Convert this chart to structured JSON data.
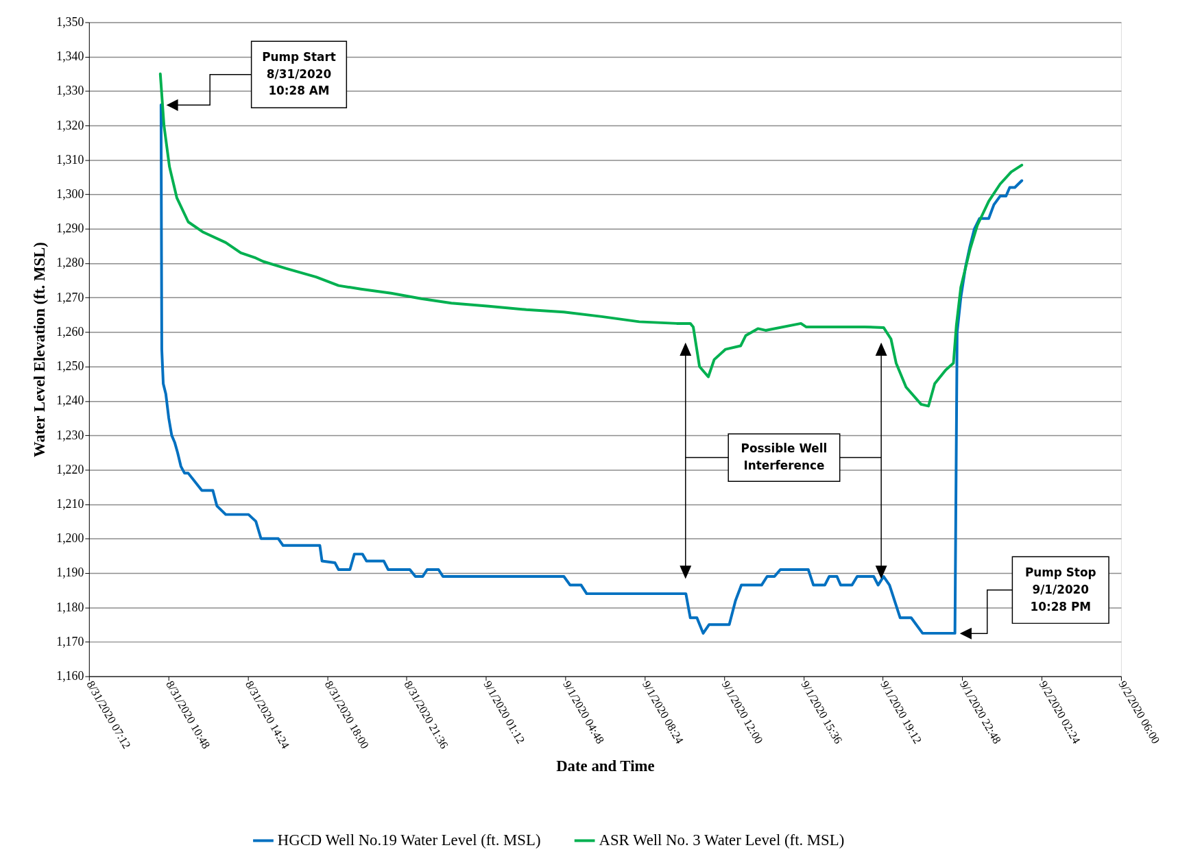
{
  "chart_data": {
    "type": "line",
    "xlabel": "Date and Time",
    "ylabel": "Water Level Elevation (ft. MSL)",
    "x": [
      "2020-08-31T10:28",
      "2020-08-31T10:30",
      "2020-08-31T10:34",
      "2020-08-31T10:41",
      "2020-08-31T10:49",
      "2020-08-31T10:57",
      "2020-08-31T11:05",
      "2020-08-31T11:13",
      "2020-08-31T11:22",
      "2020-08-31T11:32",
      "2020-08-31T11:42",
      "2020-08-31T12:19",
      "2020-08-31T12:49",
      "2020-08-31T13:00",
      "2020-08-31T13:24",
      "2020-08-31T14:26",
      "2020-08-31T14:46",
      "2020-08-31T15:00",
      "2020-08-31T15:47",
      "2020-08-31T16:00",
      "2020-08-31T17:40",
      "2020-08-31T17:46",
      "2020-08-31T18:21",
      "2020-08-31T18:31",
      "2020-08-31T19:02",
      "2020-08-31T19:14",
      "2020-08-31T19:36",
      "2020-08-31T19:47",
      "2020-08-31T20:34",
      "2020-08-31T20:46",
      "2020-08-31T21:45",
      "2020-08-31T22:00",
      "2020-08-31T22:20",
      "2020-08-31T22:32",
      "2020-08-31T23:03",
      "2020-08-31T23:15",
      "2020-09-01T04:44",
      "2020-09-01T05:01",
      "2020-09-01T05:31",
      "2020-09-01T05:46",
      "2020-09-01T10:16",
      "2020-09-01T10:28",
      "2020-09-01T10:46",
      "2020-09-01T11:03",
      "2020-09-01T11:19",
      "2020-09-01T12:14",
      "2020-09-01T12:31",
      "2020-09-01T12:47",
      "2020-09-01T13:42",
      "2020-09-01T13:57",
      "2020-09-01T14:17",
      "2020-09-01T14:33",
      "2020-09-01T15:49",
      "2020-09-01T16:03",
      "2020-09-01T16:34",
      "2020-09-01T16:46",
      "2020-09-01T17:07",
      "2020-09-01T17:17",
      "2020-09-01T17:48",
      "2020-09-01T18:02",
      "2020-09-01T18:47",
      "2020-09-01T18:59",
      "2020-09-01T19:14",
      "2020-09-01T19:30",
      "2020-09-01T19:59",
      "2020-09-01T20:29",
      "2020-09-01T21:00",
      "2020-09-01T22:28",
      "2020-09-01T22:34",
      "2020-09-01T22:44",
      "2020-09-01T22:57",
      "2020-09-01T23:09",
      "2020-09-01T23:21",
      "2020-09-01T23:35",
      "2020-09-02T00:00",
      "2020-09-02T00:14",
      "2020-09-02T00:31",
      "2020-09-02T00:47",
      "2020-09-02T00:57",
      "2020-09-02T01:11",
      "2020-09-02T01:30"
    ],
    "series": [
      {
        "name": "HGCD Well No.19 Water Level (ft. MSL)",
        "color": "#0070c0",
        "values": [
          1326,
          1255,
          1245,
          1242,
          1235,
          1230,
          1228,
          1225,
          1221,
          1219,
          1219,
          1214,
          1214,
          1209.5,
          1207,
          1207,
          1205,
          1200,
          1200,
          1198,
          1198,
          1193.5,
          1193,
          1191,
          1191,
          1195.5,
          1195.5,
          1193.5,
          1193.5,
          1191,
          1191,
          1189,
          1189,
          1191,
          1191,
          1189,
          1189,
          1186.5,
          1186.5,
          1184,
          1184,
          1177,
          1177,
          1172.5,
          1175,
          1175,
          1182,
          1186.5,
          1186.5,
          1189,
          1189,
          1191,
          1191,
          1186.5,
          1186.5,
          1189,
          1189,
          1186.5,
          1186.5,
          1189,
          1189,
          1186.5,
          1189,
          1186.5,
          1177,
          1177,
          1172.5,
          1172.5,
          1260,
          1270,
          1279,
          1285,
          1290,
          1293,
          1293,
          1297,
          1299.5,
          1299.5,
          1302,
          1302,
          1304
        ]
      },
      {
        "name": "ASR Well No. 3 Water Level (ft. MSL)",
        "color": "#00b050",
        "x": [
          "2020-08-31T10:26",
          "2020-08-31T10:36",
          "2020-08-31T10:51",
          "2020-08-31T11:11",
          "2020-08-31T11:42",
          "2020-08-31T12:23",
          "2020-08-31T13:24",
          "2020-08-31T14:05",
          "2020-08-31T14:46",
          "2020-08-31T15:06",
          "2020-08-31T16:08",
          "2020-08-31T17:30",
          "2020-08-31T18:31",
          "2020-08-31T19:32",
          "2020-08-31T20:54",
          "2020-08-31T22:16",
          "2020-08-31T23:38",
          "2020-09-01T01:20",
          "2020-09-01T03:02",
          "2020-09-01T04:44",
          "2020-09-01T06:27",
          "2020-09-01T08:09",
          "2020-09-01T09:51",
          "2020-09-01T10:28",
          "2020-09-01T10:36",
          "2020-09-01T10:53",
          "2020-09-01T11:17",
          "2020-09-01T11:33",
          "2020-09-01T12:04",
          "2020-09-01T12:45",
          "2020-09-01T12:59",
          "2020-09-01T13:32",
          "2020-09-01T13:53",
          "2020-09-01T15:29",
          "2020-09-01T15:43",
          "2020-09-01T18:22",
          "2020-09-01T19:14",
          "2020-09-01T19:34",
          "2020-09-01T19:48",
          "2020-09-01T20:15",
          "2020-09-01T20:56",
          "2020-09-01T21:16",
          "2020-09-01T21:33",
          "2020-09-01T22:03",
          "2020-09-01T22:24",
          "2020-09-01T22:32",
          "2020-09-01T22:44",
          "2020-09-01T23:09",
          "2020-09-01T23:29",
          "2020-09-02T00:00",
          "2020-09-02T00:31",
          "2020-09-02T01:01",
          "2020-09-02T01:30"
        ],
        "values": [
          1335,
          1320,
          1308,
          1299,
          1292,
          1289,
          1286,
          1283,
          1281.5,
          1280.5,
          1278.5,
          1276,
          1273.5,
          1272.5,
          1271.3,
          1269.7,
          1268.4,
          1267.5,
          1266.5,
          1265.8,
          1264.5,
          1263,
          1262.5,
          1262.5,
          1261.5,
          1250,
          1247,
          1252,
          1255,
          1256,
          1259,
          1261,
          1260.5,
          1262.5,
          1261.5,
          1261.5,
          1261.3,
          1258,
          1251,
          1244,
          1239,
          1238.5,
          1245,
          1249,
          1251,
          1262,
          1273,
          1284,
          1291,
          1298,
          1303,
          1306.5,
          1308.5
        ]
      }
    ],
    "xlim": [
      "2020-08-31T07:12",
      "2020-09-02T06:00"
    ],
    "xticks": [
      {
        "value": "2020-08-31T07:12",
        "label": "8/31/2020 07:12"
      },
      {
        "value": "2020-08-31T10:48",
        "label": "8/31/2020 10:48"
      },
      {
        "value": "2020-08-31T14:24",
        "label": "8/31/2020 14:24"
      },
      {
        "value": "2020-08-31T18:00",
        "label": "8/31/2020 18:00"
      },
      {
        "value": "2020-08-31T21:36",
        "label": "8/31/2020 21:36"
      },
      {
        "value": "2020-09-01T01:12",
        "label": "9/1/2020 01:12"
      },
      {
        "value": "2020-09-01T04:48",
        "label": "9/1/2020 04:48"
      },
      {
        "value": "2020-09-01T08:24",
        "label": "9/1/2020 08:24"
      },
      {
        "value": "2020-09-01T12:00",
        "label": "9/1/2020 12:00"
      },
      {
        "value": "2020-09-01T15:36",
        "label": "9/1/2020 15:36"
      },
      {
        "value": "2020-09-01T19:12",
        "label": "9/1/2020 19:12"
      },
      {
        "value": "2020-09-01T22:48",
        "label": "9/1/2020 22:48"
      },
      {
        "value": "2020-09-02T02:24",
        "label": "9/2/2020 02:24"
      },
      {
        "value": "2020-09-02T06:00",
        "label": "9/2/2020 06:00"
      }
    ],
    "ylim": [
      1160,
      1350
    ],
    "yticks": [
      {
        "value": 1160,
        "label": "1,160"
      },
      {
        "value": 1170,
        "label": "1,170"
      },
      {
        "value": 1180,
        "label": "1,180"
      },
      {
        "value": 1190,
        "label": "1,190"
      },
      {
        "value": 1200,
        "label": "1,200"
      },
      {
        "value": 1210,
        "label": "1,210"
      },
      {
        "value": 1220,
        "label": "1,220"
      },
      {
        "value": 1230,
        "label": "1,230"
      },
      {
        "value": 1240,
        "label": "1,240"
      },
      {
        "value": 1250,
        "label": "1,250"
      },
      {
        "value": 1260,
        "label": "1,260"
      },
      {
        "value": 1270,
        "label": "1,270"
      },
      {
        "value": 1280,
        "label": "1,280"
      },
      {
        "value": 1290,
        "label": "1,290"
      },
      {
        "value": 1300,
        "label": "1,300"
      },
      {
        "value": 1310,
        "label": "1,310"
      },
      {
        "value": 1320,
        "label": "1,320"
      },
      {
        "value": 1330,
        "label": "1,330"
      },
      {
        "value": 1340,
        "label": "1,340"
      },
      {
        "value": 1350,
        "label": "1,350"
      }
    ],
    "grid": "y",
    "legend": "bottom",
    "marker": "none",
    "line_style": "solid",
    "annotations": [
      "Pump Start\n8/31/2020\n10:28 AM",
      "Possible Well\nInterference",
      "Pump Stop\n9/1/2020\n10:28 PM"
    ]
  }
}
